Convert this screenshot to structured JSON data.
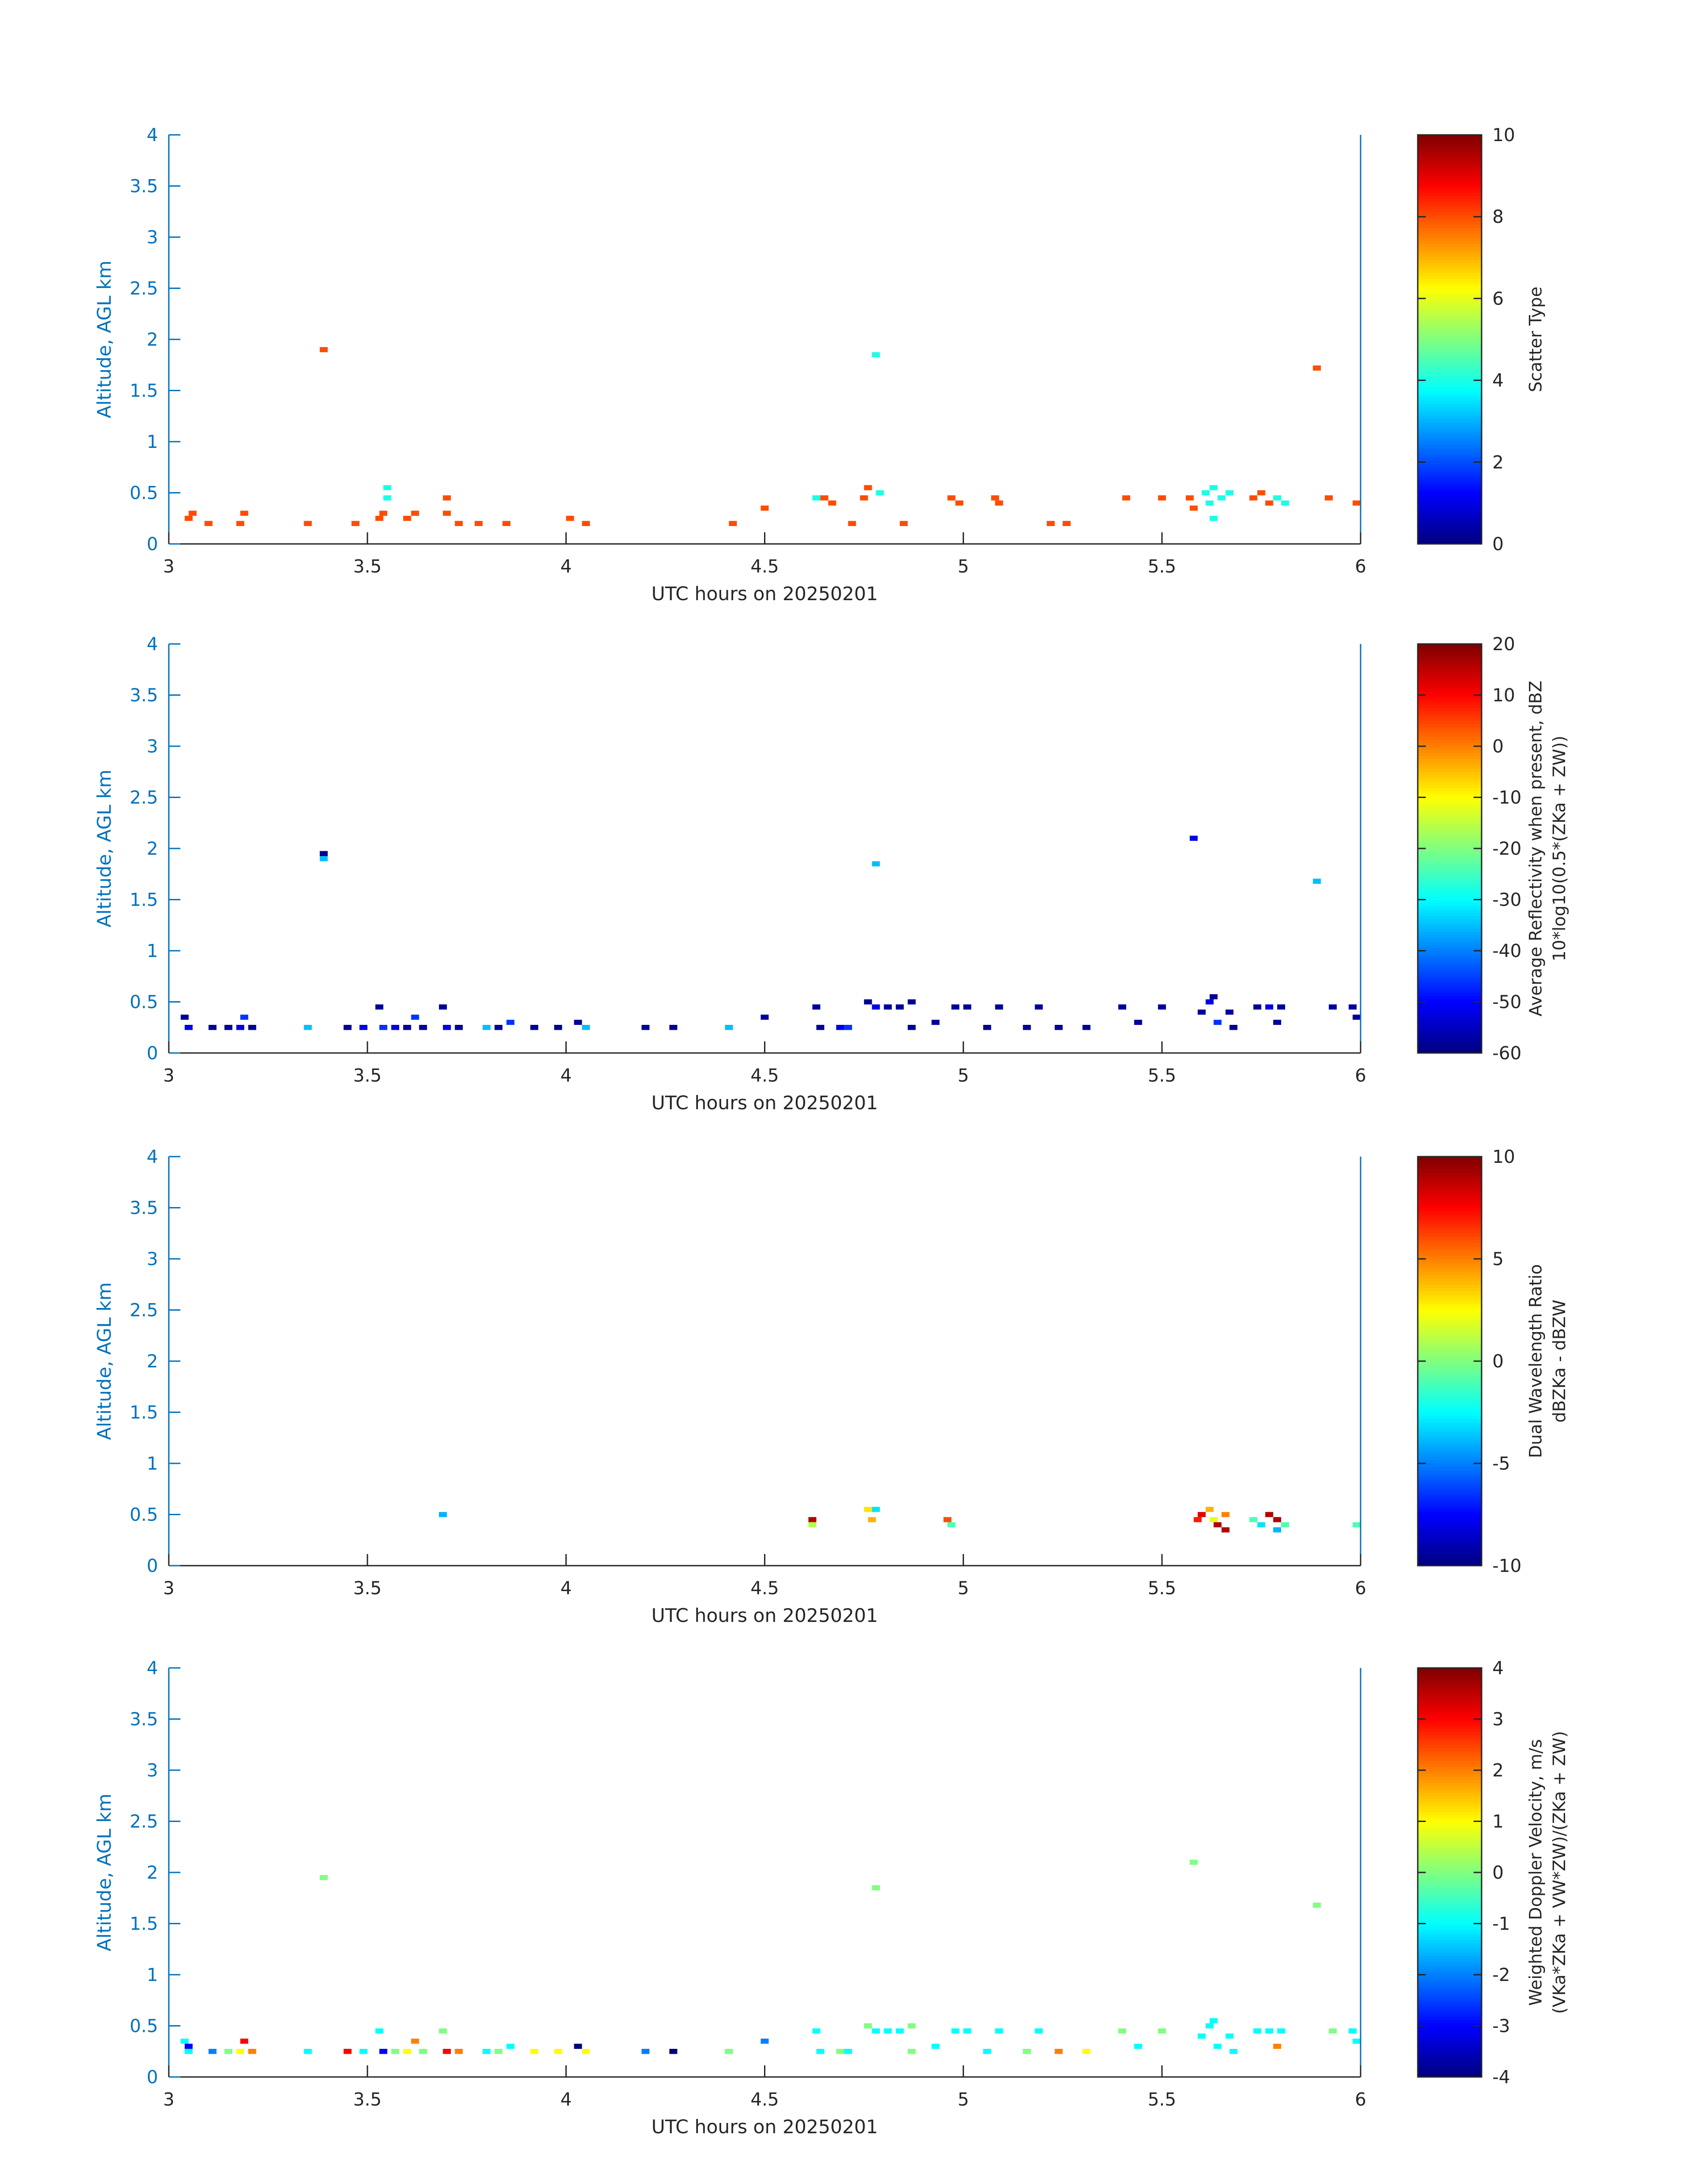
{
  "chart_data": [
    {
      "type": "heatmap",
      "panel": 1,
      "xlabel": "UTC hours on 20250201",
      "ylabel": "Altitude, AGL km",
      "xlim": [
        3,
        6
      ],
      "ylim": [
        0,
        4
      ],
      "xticks": [
        "3",
        "3.5",
        "4",
        "4.5",
        "5",
        "5.5",
        "6"
      ],
      "yticks": [
        "0",
        "0.5",
        "1",
        "1.5",
        "2",
        "2.5",
        "3",
        "3.5",
        "4"
      ],
      "colorbar": {
        "label_lines": [
          "Scatter Type"
        ],
        "range": [
          0,
          10
        ],
        "ticks": [
          "0",
          "2",
          "4",
          "6",
          "8",
          "10"
        ]
      },
      "cells": [
        [
          3.05,
          0.25,
          8
        ],
        [
          3.06,
          0.3,
          8
        ],
        [
          3.1,
          0.2,
          8
        ],
        [
          3.18,
          0.2,
          8
        ],
        [
          3.19,
          0.3,
          8
        ],
        [
          3.35,
          0.2,
          8
        ],
        [
          3.39,
          1.9,
          8
        ],
        [
          3.47,
          0.2,
          8
        ],
        [
          3.53,
          0.25,
          8
        ],
        [
          3.54,
          0.3,
          8
        ],
        [
          3.55,
          0.55,
          4
        ],
        [
          3.55,
          0.45,
          4
        ],
        [
          3.6,
          0.25,
          8
        ],
        [
          3.62,
          0.3,
          8
        ],
        [
          3.7,
          0.45,
          8
        ],
        [
          3.7,
          0.3,
          8
        ],
        [
          3.73,
          0.2,
          8
        ],
        [
          3.78,
          0.2,
          8
        ],
        [
          3.85,
          0.2,
          8
        ],
        [
          4.01,
          0.25,
          8
        ],
        [
          4.05,
          0.2,
          8
        ],
        [
          4.42,
          0.2,
          8
        ],
        [
          4.5,
          0.35,
          8
        ],
        [
          4.63,
          0.45,
          4
        ],
        [
          4.65,
          0.45,
          8
        ],
        [
          4.67,
          0.4,
          8
        ],
        [
          4.72,
          0.2,
          8
        ],
        [
          4.75,
          0.45,
          8
        ],
        [
          4.76,
          0.55,
          8
        ],
        [
          4.79,
          0.5,
          4
        ],
        [
          4.78,
          1.85,
          4
        ],
        [
          4.85,
          0.2,
          8
        ],
        [
          4.97,
          0.45,
          8
        ],
        [
          4.99,
          0.4,
          8
        ],
        [
          5.08,
          0.45,
          8
        ],
        [
          5.09,
          0.4,
          8
        ],
        [
          5.22,
          0.2,
          8
        ],
        [
          5.26,
          0.2,
          8
        ],
        [
          5.41,
          0.45,
          8
        ],
        [
          5.5,
          0.45,
          8
        ],
        [
          5.57,
          0.45,
          8
        ],
        [
          5.58,
          0.35,
          8
        ],
        [
          5.61,
          0.5,
          4
        ],
        [
          5.62,
          0.4,
          4
        ],
        [
          5.63,
          0.55,
          4
        ],
        [
          5.65,
          0.45,
          4
        ],
        [
          5.63,
          0.25,
          4
        ],
        [
          5.67,
          0.5,
          4
        ],
        [
          5.73,
          0.45,
          8
        ],
        [
          5.75,
          0.5,
          8
        ],
        [
          5.77,
          0.4,
          8
        ],
        [
          5.79,
          0.45,
          4
        ],
        [
          5.81,
          0.4,
          4
        ],
        [
          5.89,
          1.72,
          8
        ],
        [
          5.92,
          0.45,
          8
        ],
        [
          6.0,
          0.4,
          8
        ]
      ]
    },
    {
      "type": "heatmap",
      "panel": 2,
      "xlabel": "UTC hours on 20250201",
      "ylabel": "Altitude, AGL km",
      "xlim": [
        3,
        6
      ],
      "ylim": [
        0,
        4
      ],
      "xticks": [
        "3",
        "3.5",
        "4",
        "4.5",
        "5",
        "5.5",
        "6"
      ],
      "yticks": [
        "0",
        "0.5",
        "1",
        "1.5",
        "2",
        "2.5",
        "3",
        "3.5",
        "4"
      ],
      "colorbar": {
        "label_lines": [
          "Average Reflectivity when present, dBZ",
          "10*log10(0.5*(ZKa + ZW))"
        ],
        "range": [
          -60,
          20
        ],
        "ticks": [
          "-60",
          "-50",
          "-40",
          "-30",
          "-20",
          "-10",
          "0",
          "10",
          "20"
        ]
      },
      "cells": [
        [
          3.04,
          0.35,
          -58
        ],
        [
          3.05,
          0.25,
          -52
        ],
        [
          3.11,
          0.25,
          -58
        ],
        [
          3.15,
          0.25,
          -58
        ],
        [
          3.18,
          0.25,
          -52
        ],
        [
          3.19,
          0.35,
          -46
        ],
        [
          3.21,
          0.25,
          -58
        ],
        [
          3.35,
          0.25,
          -35
        ],
        [
          3.39,
          1.95,
          -58
        ],
        [
          3.39,
          1.9,
          -35
        ],
        [
          3.45,
          0.25,
          -58
        ],
        [
          3.49,
          0.25,
          -52
        ],
        [
          3.53,
          0.45,
          -58
        ],
        [
          3.54,
          0.25,
          -46
        ],
        [
          3.57,
          0.25,
          -52
        ],
        [
          3.6,
          0.25,
          -58
        ],
        [
          3.62,
          0.35,
          -46
        ],
        [
          3.64,
          0.25,
          -58
        ],
        [
          3.69,
          0.45,
          -58
        ],
        [
          3.7,
          0.25,
          -52
        ],
        [
          3.73,
          0.25,
          -58
        ],
        [
          3.8,
          0.25,
          -35
        ],
        [
          3.83,
          0.25,
          -58
        ],
        [
          3.86,
          0.3,
          -46
        ],
        [
          3.92,
          0.25,
          -58
        ],
        [
          3.98,
          0.25,
          -58
        ],
        [
          4.03,
          0.3,
          -58
        ],
        [
          4.05,
          0.25,
          -35
        ],
        [
          4.2,
          0.25,
          -58
        ],
        [
          4.27,
          0.25,
          -58
        ],
        [
          4.41,
          0.25,
          -35
        ],
        [
          4.5,
          0.35,
          -58
        ],
        [
          4.63,
          0.45,
          -58
        ],
        [
          4.64,
          0.25,
          -58
        ],
        [
          4.69,
          0.25,
          -52
        ],
        [
          4.71,
          0.25,
          -46
        ],
        [
          4.76,
          0.5,
          -58
        ],
        [
          4.78,
          0.45,
          -52
        ],
        [
          4.81,
          0.45,
          -58
        ],
        [
          4.78,
          1.85,
          -35
        ],
        [
          4.84,
          0.45,
          -58
        ],
        [
          4.87,
          0.5,
          -58
        ],
        [
          4.87,
          0.25,
          -58
        ],
        [
          4.93,
          0.3,
          -58
        ],
        [
          4.98,
          0.45,
          -58
        ],
        [
          5.01,
          0.45,
          -58
        ],
        [
          5.06,
          0.25,
          -58
        ],
        [
          5.09,
          0.45,
          -58
        ],
        [
          5.16,
          0.25,
          -58
        ],
        [
          5.19,
          0.45,
          -58
        ],
        [
          5.24,
          0.25,
          -58
        ],
        [
          5.31,
          0.25,
          -58
        ],
        [
          5.4,
          0.45,
          -58
        ],
        [
          5.44,
          0.3,
          -58
        ],
        [
          5.5,
          0.45,
          -58
        ],
        [
          5.58,
          2.1,
          -52
        ],
        [
          5.6,
          0.4,
          -58
        ],
        [
          5.62,
          0.5,
          -52
        ],
        [
          5.63,
          0.55,
          -58
        ],
        [
          5.64,
          0.3,
          -46
        ],
        [
          5.67,
          0.4,
          -58
        ],
        [
          5.68,
          0.25,
          -58
        ],
        [
          5.74,
          0.45,
          -58
        ],
        [
          5.77,
          0.45,
          -52
        ],
        [
          5.79,
          0.3,
          -58
        ],
        [
          5.8,
          0.45,
          -58
        ],
        [
          5.89,
          1.68,
          -35
        ],
        [
          5.93,
          0.45,
          -58
        ],
        [
          5.98,
          0.45,
          -58
        ],
        [
          6.0,
          0.35,
          -58
        ]
      ]
    },
    {
      "type": "heatmap",
      "panel": 3,
      "xlabel": "UTC hours on 20250201",
      "ylabel": "Altitude, AGL km",
      "xlim": [
        3,
        6
      ],
      "ylim": [
        0,
        4
      ],
      "xticks": [
        "3",
        "3.5",
        "4",
        "4.5",
        "5",
        "5.5",
        "6"
      ],
      "yticks": [
        "0",
        "0.5",
        "1",
        "1.5",
        "2",
        "2.5",
        "3",
        "3.5",
        "4"
      ],
      "colorbar": {
        "label_lines": [
          "Dual Wavelength Ratio",
          "dBZKa - dBZW"
        ],
        "range": [
          -10,
          10
        ],
        "ticks": [
          "-10",
          "-5",
          "0",
          "5",
          "10"
        ]
      },
      "cells": [
        [
          3.69,
          0.5,
          -4
        ],
        [
          4.62,
          0.45,
          9
        ],
        [
          4.62,
          0.4,
          1
        ],
        [
          4.76,
          0.55,
          3
        ],
        [
          4.77,
          0.45,
          4
        ],
        [
          4.78,
          0.55,
          -3
        ],
        [
          4.96,
          0.45,
          6
        ],
        [
          4.97,
          0.4,
          -1
        ],
        [
          5.59,
          0.45,
          7
        ],
        [
          5.6,
          0.5,
          8
        ],
        [
          5.62,
          0.55,
          4
        ],
        [
          5.63,
          0.45,
          2
        ],
        [
          5.64,
          0.4,
          9
        ],
        [
          5.66,
          0.35,
          9
        ],
        [
          5.66,
          0.5,
          5
        ],
        [
          5.73,
          0.45,
          -1
        ],
        [
          5.75,
          0.4,
          -3
        ],
        [
          5.77,
          0.5,
          9
        ],
        [
          5.79,
          0.45,
          9
        ],
        [
          5.81,
          0.4,
          -1
        ],
        [
          5.79,
          0.35,
          -4
        ],
        [
          6.0,
          0.4,
          -1
        ]
      ]
    },
    {
      "type": "heatmap",
      "panel": 4,
      "xlabel": "UTC hours on 20250201",
      "ylabel": "Altitude, AGL km",
      "xlim": [
        3,
        6
      ],
      "ylim": [
        0,
        4
      ],
      "xticks": [
        "3",
        "3.5",
        "4",
        "4.5",
        "5",
        "5.5",
        "6"
      ],
      "yticks": [
        "0",
        "0.5",
        "1",
        "1.5",
        "2",
        "2.5",
        "3",
        "3.5",
        "4"
      ],
      "colorbar": {
        "label_lines": [
          "Weighted Doppler Velocity, m/s",
          "(VKa*ZKa + VW*ZW)/(ZKa + ZW)"
        ],
        "range": [
          -4,
          4
        ],
        "ticks": [
          "-4",
          "-3",
          "-2",
          "-1",
          "0",
          "1",
          "2",
          "3",
          "4"
        ]
      },
      "cells": [
        [
          3.04,
          0.35,
          -1
        ],
        [
          3.05,
          0.3,
          -3
        ],
        [
          3.05,
          0.25,
          -1
        ],
        [
          3.11,
          0.25,
          -2
        ],
        [
          3.15,
          0.25,
          0
        ],
        [
          3.18,
          0.25,
          1
        ],
        [
          3.19,
          0.35,
          3
        ],
        [
          3.21,
          0.25,
          2
        ],
        [
          3.35,
          0.25,
          -1
        ],
        [
          3.39,
          1.95,
          0
        ],
        [
          3.45,
          0.25,
          3
        ],
        [
          3.49,
          0.25,
          -1
        ],
        [
          3.53,
          0.45,
          -1
        ],
        [
          3.54,
          0.25,
          -3
        ],
        [
          3.57,
          0.25,
          0
        ],
        [
          3.6,
          0.25,
          1
        ],
        [
          3.62,
          0.35,
          2
        ],
        [
          3.64,
          0.25,
          0
        ],
        [
          3.69,
          0.45,
          0
        ],
        [
          3.7,
          0.25,
          3
        ],
        [
          3.73,
          0.25,
          2
        ],
        [
          3.8,
          0.25,
          -1
        ],
        [
          3.83,
          0.25,
          0
        ],
        [
          3.86,
          0.3,
          -1
        ],
        [
          3.92,
          0.25,
          1
        ],
        [
          3.98,
          0.25,
          1
        ],
        [
          4.03,
          0.3,
          -4
        ],
        [
          4.05,
          0.25,
          1
        ],
        [
          4.2,
          0.25,
          -2
        ],
        [
          4.27,
          0.25,
          -4
        ],
        [
          4.41,
          0.25,
          0
        ],
        [
          4.5,
          0.35,
          -2
        ],
        [
          4.63,
          0.45,
          -1
        ],
        [
          4.64,
          0.25,
          -1
        ],
        [
          4.69,
          0.25,
          0
        ],
        [
          4.71,
          0.25,
          -1
        ],
        [
          4.76,
          0.5,
          0
        ],
        [
          4.78,
          0.45,
          -1
        ],
        [
          4.81,
          0.45,
          -1
        ],
        [
          4.78,
          1.85,
          0
        ],
        [
          4.84,
          0.45,
          -1
        ],
        [
          4.87,
          0.5,
          0
        ],
        [
          4.87,
          0.25,
          0
        ],
        [
          4.93,
          0.3,
          -1
        ],
        [
          4.98,
          0.45,
          -1
        ],
        [
          5.01,
          0.45,
          -1
        ],
        [
          5.06,
          0.25,
          -1
        ],
        [
          5.09,
          0.45,
          -1
        ],
        [
          5.16,
          0.25,
          0
        ],
        [
          5.19,
          0.45,
          -1
        ],
        [
          5.24,
          0.25,
          2
        ],
        [
          5.31,
          0.25,
          1
        ],
        [
          5.4,
          0.45,
          0
        ],
        [
          5.44,
          0.3,
          -1
        ],
        [
          5.5,
          0.45,
          0
        ],
        [
          5.58,
          2.1,
          0
        ],
        [
          5.6,
          0.4,
          -1
        ],
        [
          5.62,
          0.5,
          -1
        ],
        [
          5.63,
          0.55,
          -1
        ],
        [
          5.64,
          0.3,
          -1
        ],
        [
          5.67,
          0.4,
          -1
        ],
        [
          5.68,
          0.25,
          -1
        ],
        [
          5.74,
          0.45,
          -1
        ],
        [
          5.77,
          0.45,
          -1
        ],
        [
          5.79,
          0.3,
          2
        ],
        [
          5.8,
          0.45,
          -1
        ],
        [
          5.89,
          1.68,
          0
        ],
        [
          5.93,
          0.45,
          0
        ],
        [
          5.98,
          0.45,
          -1
        ],
        [
          6.0,
          0.35,
          -1
        ]
      ]
    }
  ],
  "colors": {
    "axis": "#0072BD",
    "text": "#262626",
    "marker": "#000000"
  },
  "colormap": "jet"
}
